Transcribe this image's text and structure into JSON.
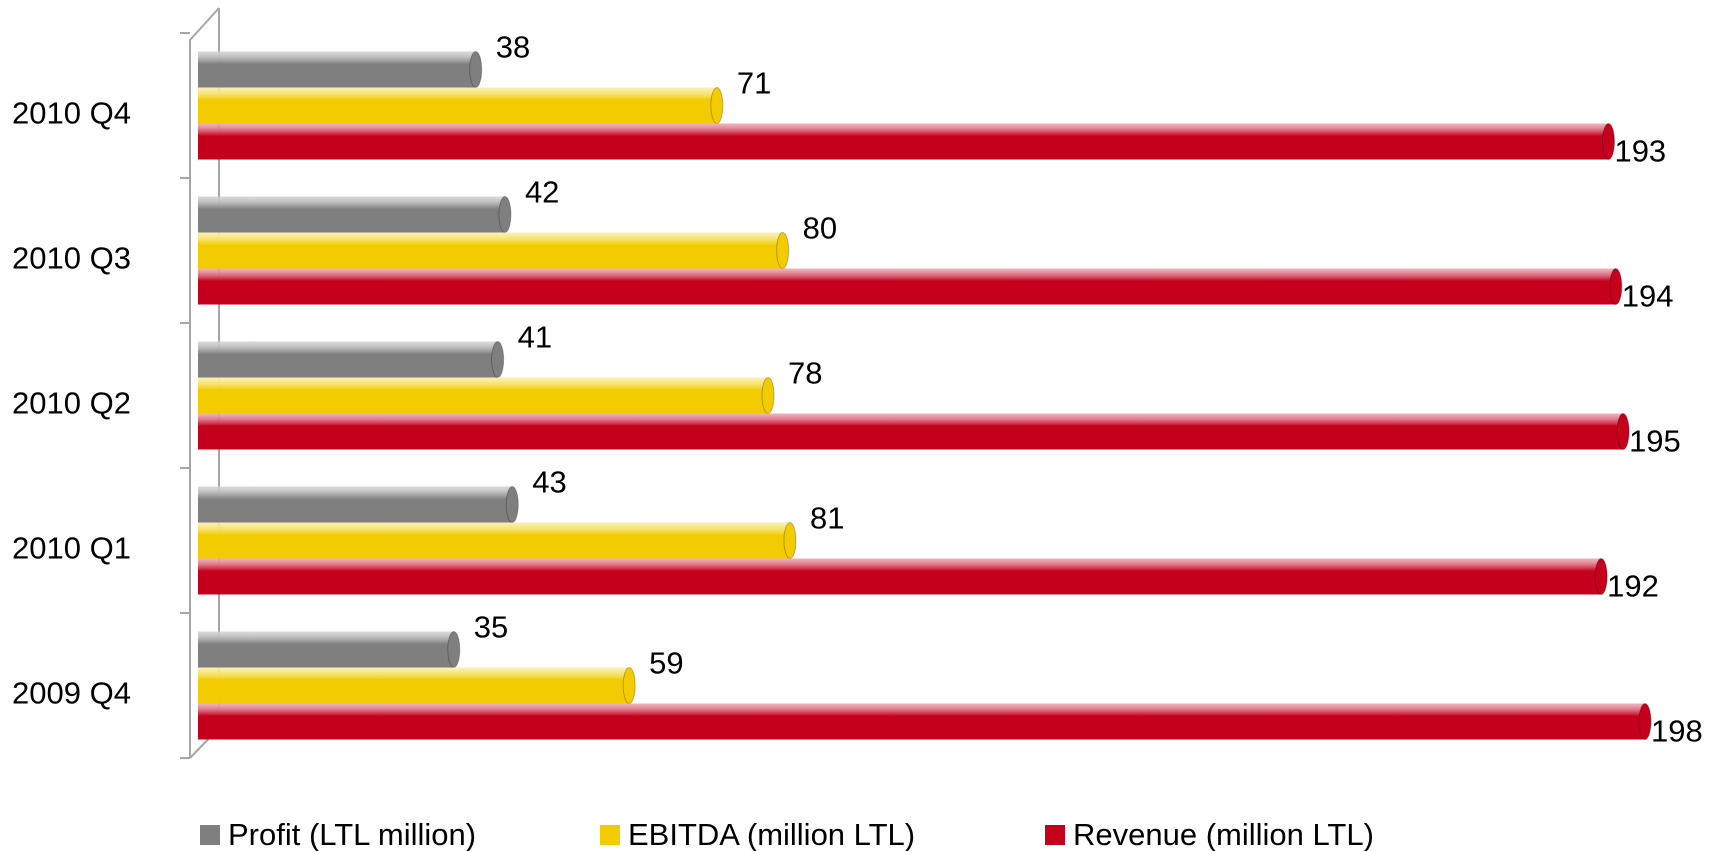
{
  "chart_data": {
    "type": "bar",
    "orientation": "horizontal",
    "categories": [
      "2010 Q4",
      "2010 Q3",
      "2010 Q2",
      "2010 Q1",
      "2009 Q4"
    ],
    "series": [
      {
        "name": "Profit (LTL million)",
        "color": "#7f7f7f",
        "values": [
          38,
          42,
          41,
          43,
          35
        ]
      },
      {
        "name": "EBITDA (million LTL)",
        "color": "#f2cc00",
        "values": [
          71,
          80,
          78,
          81,
          59
        ]
      },
      {
        "name": "Revenue (million LTL)",
        "color": "#c4001d",
        "values": [
          193,
          194,
          195,
          192,
          198
        ]
      }
    ],
    "legend": "bottom"
  }
}
